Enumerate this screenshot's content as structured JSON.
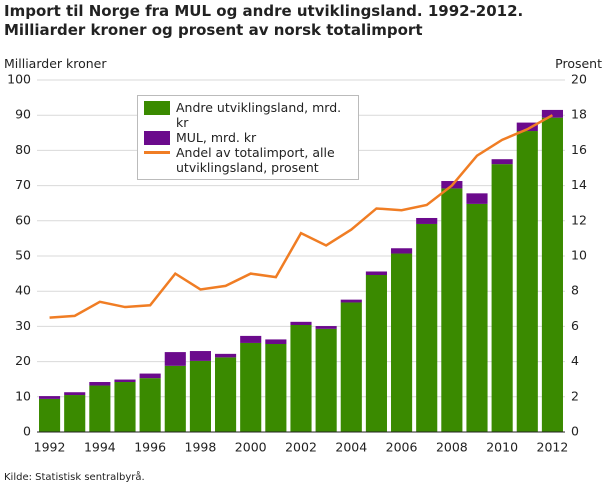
{
  "chart_data": {
    "type": "bar",
    "title": "Import til Norge fra MUL og andre utviklingsland. 1992-2012. Milliarder kroner og prosent av norsk totalimport",
    "y_label": "Milliarder kroner",
    "y2_label": "Prosent",
    "source": "Kilde: Statistisk sentralbyrå.",
    "categories": [
      "1992",
      null,
      "1994",
      null,
      "1996",
      null,
      "1998",
      null,
      "2000",
      null,
      "2002",
      null,
      "2004",
      null,
      "2006",
      null,
      "2008",
      null,
      "2010",
      null,
      "2012"
    ],
    "series": [
      {
        "name": "Andre utviklingsland, mrd. kr",
        "color": "#3a8a00",
        "type": "bar",
        "values": [
          9.4,
          10.5,
          13.2,
          14.2,
          15.3,
          18.8,
          20.2,
          21.2,
          25.3,
          25.0,
          30.4,
          29.3,
          36.8,
          44.6,
          50.7,
          59.1,
          69.2,
          64.8,
          76.1,
          85.5,
          89.3
        ]
      },
      {
        "name": "MUL, mrd. kr",
        "color": "#6b0a8c",
        "type": "bar",
        "values": [
          0.8,
          0.8,
          1.0,
          0.7,
          1.3,
          3.9,
          2.8,
          1.0,
          2.0,
          1.3,
          0.9,
          0.8,
          0.8,
          1.0,
          1.5,
          1.7,
          2.1,
          3.0,
          1.4,
          2.4,
          2.2
        ]
      },
      {
        "name": "Andel av totalimport, alle utviklingsland, prosent",
        "color": "#f07d24",
        "type": "line",
        "axis": "y2",
        "values": [
          6.5,
          6.6,
          7.4,
          7.1,
          7.2,
          9.0,
          8.1,
          8.3,
          9.0,
          8.8,
          11.3,
          10.6,
          11.5,
          12.7,
          12.6,
          12.9,
          14.0,
          15.7,
          16.6,
          17.2,
          18.0
        ]
      }
    ],
    "ylim": [
      0,
      100
    ],
    "yticks": [
      0,
      10,
      20,
      30,
      40,
      50,
      60,
      70,
      80,
      90,
      100
    ],
    "y2lim": [
      0,
      20
    ],
    "y2ticks": [
      0,
      2,
      4,
      6,
      8,
      10,
      12,
      14,
      16,
      18,
      20
    ],
    "grid": true,
    "legend": "top-left"
  }
}
